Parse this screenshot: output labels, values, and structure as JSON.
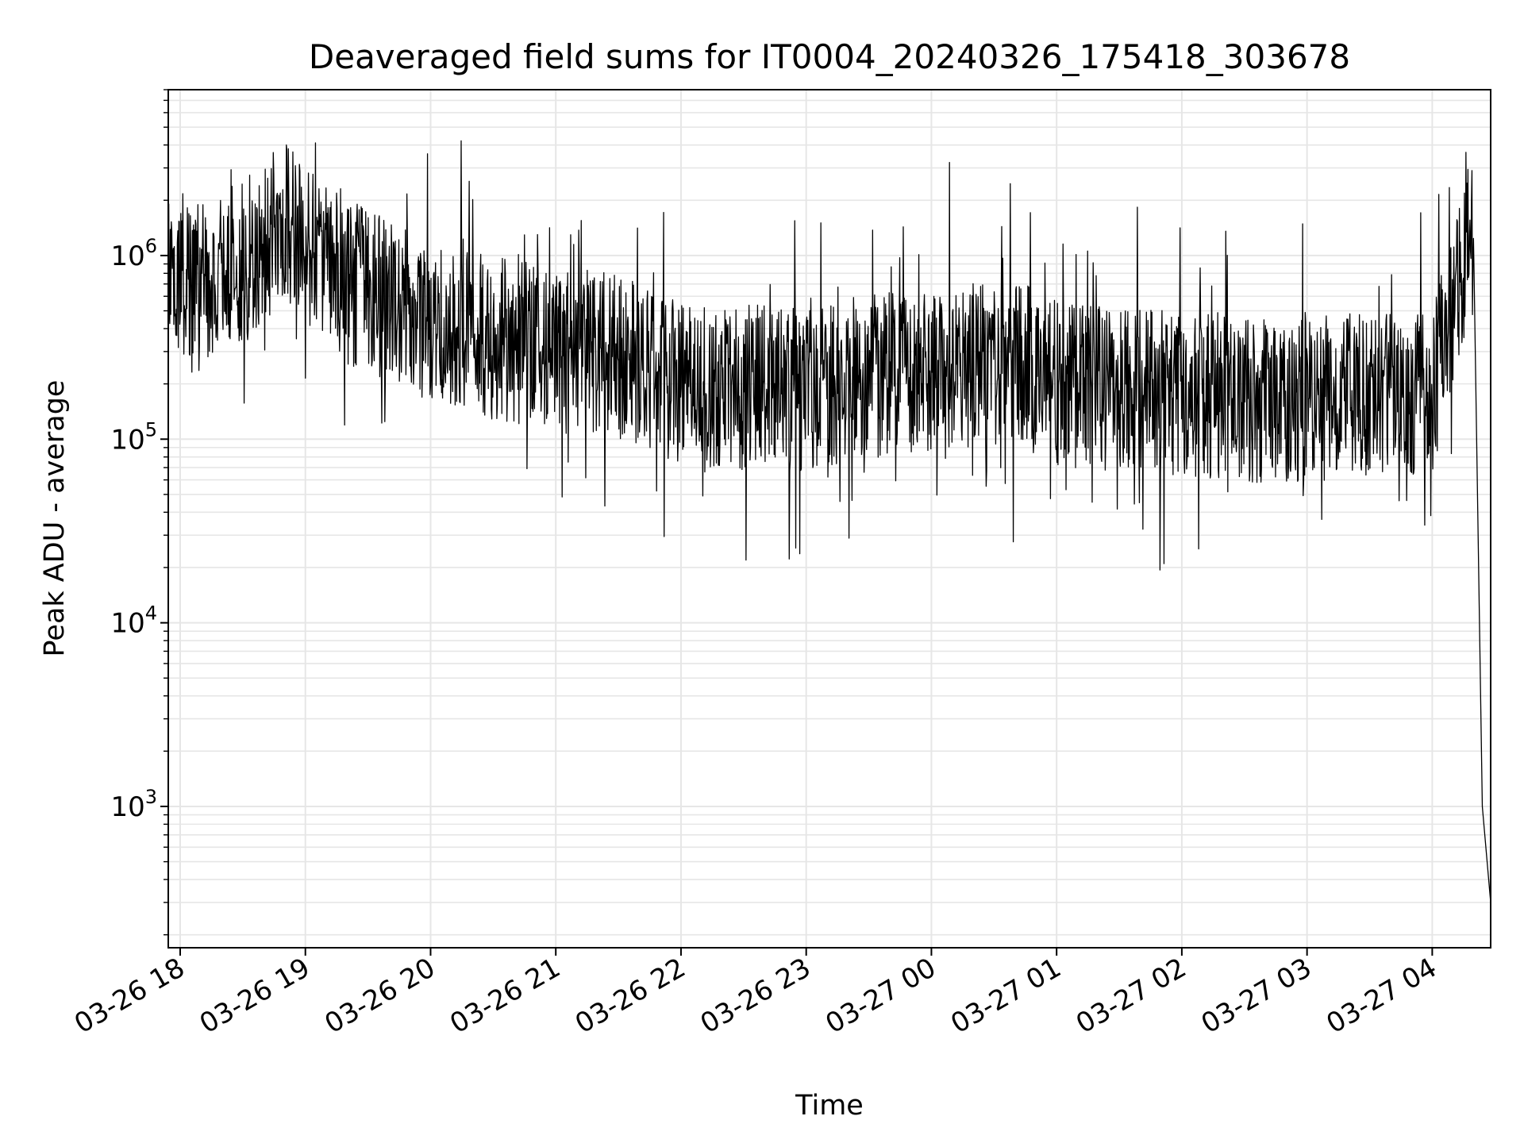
{
  "chart_data": {
    "type": "line",
    "title": "Deaveraged field sums for IT0004_20240326_175418_303678",
    "xlabel": "Time",
    "ylabel": "Peak ADU - average",
    "yscale": "log",
    "ylim": [
      170,
      8000000
    ],
    "xlim": [
      "2024-03-26T17:54:18",
      "2024-03-27T04:28:00"
    ],
    "grid": true,
    "x_tick_labels": [
      "03-26 18",
      "03-26 19",
      "03-26 20",
      "03-26 21",
      "03-26 22",
      "03-26 23",
      "03-27 00",
      "03-27 01",
      "03-27 02",
      "03-27 03",
      "03-27 04"
    ],
    "y_tick_labels": [
      {
        "base": "10",
        "exp": "3",
        "value": 1000
      },
      {
        "base": "10",
        "exp": "4",
        "value": 10000
      },
      {
        "base": "10",
        "exp": "5",
        "value": 100000
      },
      {
        "base": "10",
        "exp": "6",
        "value": 1000000
      }
    ],
    "line_color": "#000000",
    "grid_color": "#e6e6e6",
    "series": [
      {
        "x": [
          "2024-03-26T17:54:18",
          "2024-03-26T18:00",
          "2024-03-26T18:10",
          "2024-03-26T18:20",
          "2024-03-26T18:30",
          "2024-03-26T18:40",
          "2024-03-26T18:50",
          "2024-03-26T19:00",
          "2024-03-26T19:10",
          "2024-03-26T19:20",
          "2024-03-26T19:30",
          "2024-03-26T19:40",
          "2024-03-26T19:50",
          "2024-03-26T20:00",
          "2024-03-26T20:15",
          "2024-03-26T20:30",
          "2024-03-26T20:45",
          "2024-03-26T21:00",
          "2024-03-26T21:15",
          "2024-03-26T21:30",
          "2024-03-26T21:45",
          "2024-03-26T22:00",
          "2024-03-26T22:15",
          "2024-03-26T22:30",
          "2024-03-26T22:45",
          "2024-03-26T23:00",
          "2024-03-26T23:15",
          "2024-03-26T23:30",
          "2024-03-26T23:45",
          "2024-03-27T00:00",
          "2024-03-27T00:15",
          "2024-03-27T00:30",
          "2024-03-27T00:45",
          "2024-03-27T01:00",
          "2024-03-27T01:15",
          "2024-03-27T01:30",
          "2024-03-27T01:45",
          "2024-03-27T02:00",
          "2024-03-27T02:15",
          "2024-03-27T02:30",
          "2024-03-27T02:45",
          "2024-03-27T03:00",
          "2024-03-27T03:15",
          "2024-03-27T03:30",
          "2024-03-27T03:45",
          "2024-03-27T04:00",
          "2024-03-27T04:10",
          "2024-03-27T04:15",
          "2024-03-27T04:18",
          "2024-03-27T04:20",
          "2024-03-27T04:24",
          "2024-03-27T04:28"
        ],
        "values": [
          700000,
          800000,
          700000,
          800000,
          900000,
          1200000,
          1500000,
          1200000,
          900000,
          700000,
          650000,
          550000,
          500000,
          450000,
          380000,
          350000,
          330000,
          320000,
          300000,
          280000,
          250000,
          200000,
          180000,
          190000,
          200000,
          180000,
          200000,
          220000,
          230000,
          240000,
          250000,
          260000,
          250000,
          200000,
          190000,
          185000,
          180000,
          175000,
          170000,
          165000,
          160000,
          165000,
          170000,
          175000,
          175000,
          180000,
          500000,
          900000,
          1400000,
          800000,
          1000,
          300
        ]
      }
    ]
  }
}
